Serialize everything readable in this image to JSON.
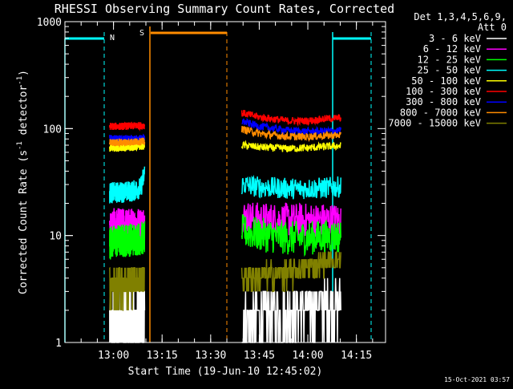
{
  "chart_data": {
    "type": "line",
    "title": "RHESSI Observing Summary Count Rates, Corrected",
    "xlabel": "Start Time (19-Jun-10 12:45:02)",
    "ylabel_parts": [
      "Corrected Count Rate (s",
      "-1",
      " detector",
      "-1",
      ")"
    ],
    "y_scale": "log",
    "ylim": [
      1,
      1000
    ],
    "y_ticks": [
      {
        "v": 1,
        "label": "1"
      },
      {
        "v": 10,
        "label": "10"
      },
      {
        "v": 100,
        "label": "100"
      },
      {
        "v": 1000,
        "label": "1000"
      }
    ],
    "xlim": [
      12.75,
      14.4
    ],
    "x_ticks": [
      {
        "v": 13.0,
        "label": "13:00"
      },
      {
        "v": 13.25,
        "label": "13:15"
      },
      {
        "v": 13.5,
        "label": "13:30"
      },
      {
        "v": 13.75,
        "label": "13:45"
      },
      {
        "v": 14.0,
        "label": "14:00"
      },
      {
        "v": 14.25,
        "label": "14:15"
      }
    ],
    "legend_placement": "right, outside plot",
    "legend_header": [
      "Det 1,3,4,5,6,9,",
      "Att 0"
    ],
    "series": [
      {
        "name": "3 - 6 keV",
        "color": "#ffffff",
        "segments": [
          {
            "x": [
              12.98,
              13.05,
              13.1,
              13.16
            ],
            "y": [
              1.5,
              1.6,
              1.6,
              1.7
            ],
            "noise": "count"
          },
          {
            "x": [
              13.66,
              13.75,
              13.9,
              14.0,
              14.1,
              14.17
            ],
            "y": [
              1.6,
              1.7,
              2.0,
              2.2,
              2.4,
              2.5
            ],
            "noise": "count"
          }
        ]
      },
      {
        "name": "6 - 12 keV",
        "color": "#ff00ff",
        "segments": [
          {
            "x": [
              12.98,
              13.05,
              13.1,
              13.16
            ],
            "y": [
              12.5,
              12.5,
              12.6,
              13
            ],
            "noise": "mid"
          },
          {
            "x": [
              13.66,
              13.75,
              13.9,
              14.0,
              14.1,
              14.17
            ],
            "y": [
              15,
              14.2,
              14,
              14,
              14,
              14
            ],
            "noise": "mid"
          }
        ]
      },
      {
        "name": "12 - 25 keV",
        "color": "#00ff00",
        "segments": [
          {
            "x": [
              12.98,
              13.05,
              13.1,
              13.16
            ],
            "y": [
              8.6,
              9,
              9.2,
              9.5
            ],
            "noise": "mid"
          },
          {
            "x": [
              13.66,
              13.75,
              13.9,
              14.0,
              14.1,
              14.17
            ],
            "y": [
              11,
              10.2,
              9.5,
              9.5,
              9.8,
              9.8
            ],
            "noise": "mid"
          }
        ]
      },
      {
        "name": "25 - 50 keV",
        "color": "#00ffff",
        "segments": [
          {
            "x": [
              12.98,
              13.05,
              13.1,
              13.14,
              13.16
            ],
            "y": [
              25,
              25.5,
              26,
              28,
              38
            ],
            "noise": "low"
          },
          {
            "x": [
              13.66,
              13.75,
              13.9,
              14.0,
              14.1,
              14.17
            ],
            "y": [
              30,
              28.5,
              27.5,
              27.5,
              28,
              28.5
            ],
            "noise": "low"
          }
        ]
      },
      {
        "name": "50 - 100 keV",
        "color": "#ffff00",
        "segments": [
          {
            "x": [
              12.98,
              13.05,
              13.1,
              13.16
            ],
            "y": [
              66,
              66,
              67,
              69
            ],
            "noise": "tiny"
          },
          {
            "x": [
              13.66,
              13.75,
              13.9,
              14.0,
              14.1,
              14.17
            ],
            "y": [
              70,
              67,
              65,
              66,
              68,
              69
            ],
            "noise": "tiny"
          }
        ]
      },
      {
        "name": "100 - 300 keV",
        "color": "#ff0000",
        "segments": [
          {
            "x": [
              12.98,
              13.05,
              13.1,
              13.16
            ],
            "y": [
              105,
              105,
              106,
              107
            ],
            "noise": "tiny"
          },
          {
            "x": [
              13.66,
              13.75,
              13.9,
              14.0,
              14.1,
              14.17
            ],
            "y": [
              140,
              128,
              118,
              118,
              124,
              126
            ],
            "noise": "tiny"
          }
        ]
      },
      {
        "name": "300 - 800 keV",
        "color": "#0000ff",
        "segments": [
          {
            "x": [
              12.98,
              13.05,
              13.1,
              13.16
            ],
            "y": [
              81,
              80,
              80,
              81
            ],
            "noise": "tiny"
          },
          {
            "x": [
              13.66,
              13.75,
              13.9,
              14.0,
              14.1,
              14.17
            ],
            "y": [
              117,
              105,
              96,
              94,
              95,
              96
            ],
            "noise": "tiny"
          }
        ]
      },
      {
        "name": "800 - 7000 keV",
        "color": "#ff8c00",
        "segments": [
          {
            "x": [
              12.98,
              13.05,
              13.1,
              13.16
            ],
            "y": [
              74,
              74,
              75,
              76
            ],
            "noise": "tiny"
          },
          {
            "x": [
              13.66,
              13.75,
              13.9,
              14.0,
              14.1,
              14.17
            ],
            "y": [
              99,
              90,
              84,
              84,
              86,
              87
            ],
            "noise": "tiny"
          }
        ]
      },
      {
        "name": "7000 - 15000 keV",
        "color": "#808000",
        "segments": [
          {
            "x": [
              12.98,
              13.05,
              13.1,
              13.16
            ],
            "y": [
              3.4,
              3.6,
              3.8,
              4.2
            ],
            "noise": "count"
          },
          {
            "x": [
              13.66,
              13.75,
              13.9,
              14.0,
              14.1,
              14.17
            ],
            "y": [
              4.2,
              4.2,
              4.5,
              5,
              5.8,
              6
            ],
            "noise": "count"
          }
        ]
      }
    ],
    "annotations": [
      {
        "label": "N",
        "color": "#00ffff"
      },
      {
        "label": "S",
        "color": "#ff8c00"
      }
    ],
    "footer": "15-Oct-2021 03:57"
  }
}
